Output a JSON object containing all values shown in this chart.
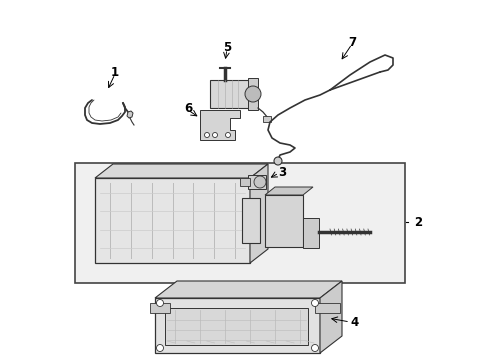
{
  "background_color": "#ffffff",
  "line_color": "#333333",
  "gray_fill": "#e0e0e0",
  "light_fill": "#f0f0f0",
  "box_fill": "#ebebeb",
  "fig_width": 4.89,
  "fig_height": 3.6,
  "dpi": 100
}
